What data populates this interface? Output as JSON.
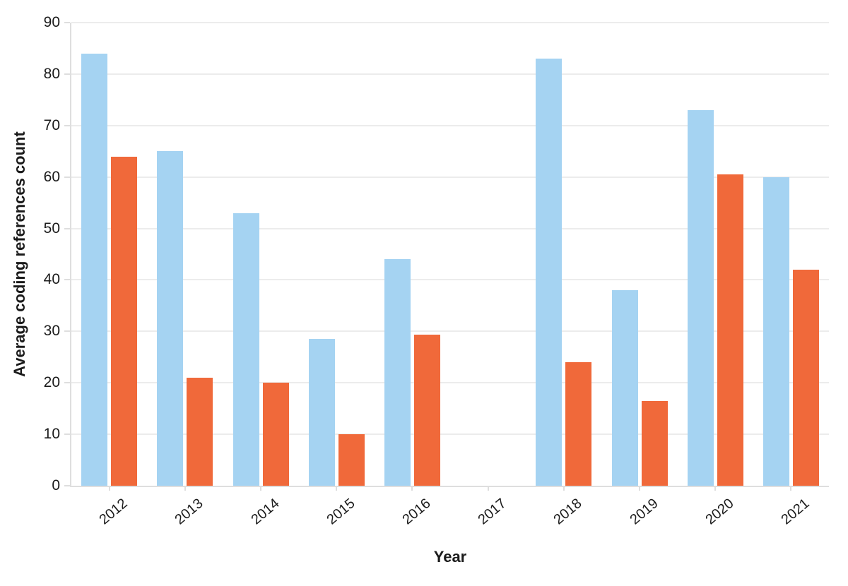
{
  "chart_data": {
    "type": "bar",
    "title": "",
    "xlabel": "Year",
    "ylabel": "Average coding references count",
    "categories": [
      "2012",
      "2013",
      "2014",
      "2015",
      "2016",
      "2017",
      "2018",
      "2019",
      "2020",
      "2021"
    ],
    "series": [
      {
        "id": "light-blue",
        "color": "#a5d3f2",
        "values": [
          84,
          65,
          53,
          28.5,
          44,
          null,
          83,
          38,
          73,
          60
        ]
      },
      {
        "id": "orange",
        "color": "#f0693a",
        "values": [
          64,
          21,
          20,
          10,
          29.3,
          null,
          24,
          16.5,
          60.5,
          42
        ]
      }
    ],
    "ylim": [
      0,
      90
    ],
    "ytick_step": 10,
    "grid": "horizontal",
    "legend_position": "none",
    "colors": {
      "gridline": "#ececec",
      "axis_line": "#dedede",
      "text": "#1b1b1b",
      "background": "#ffffff"
    }
  }
}
